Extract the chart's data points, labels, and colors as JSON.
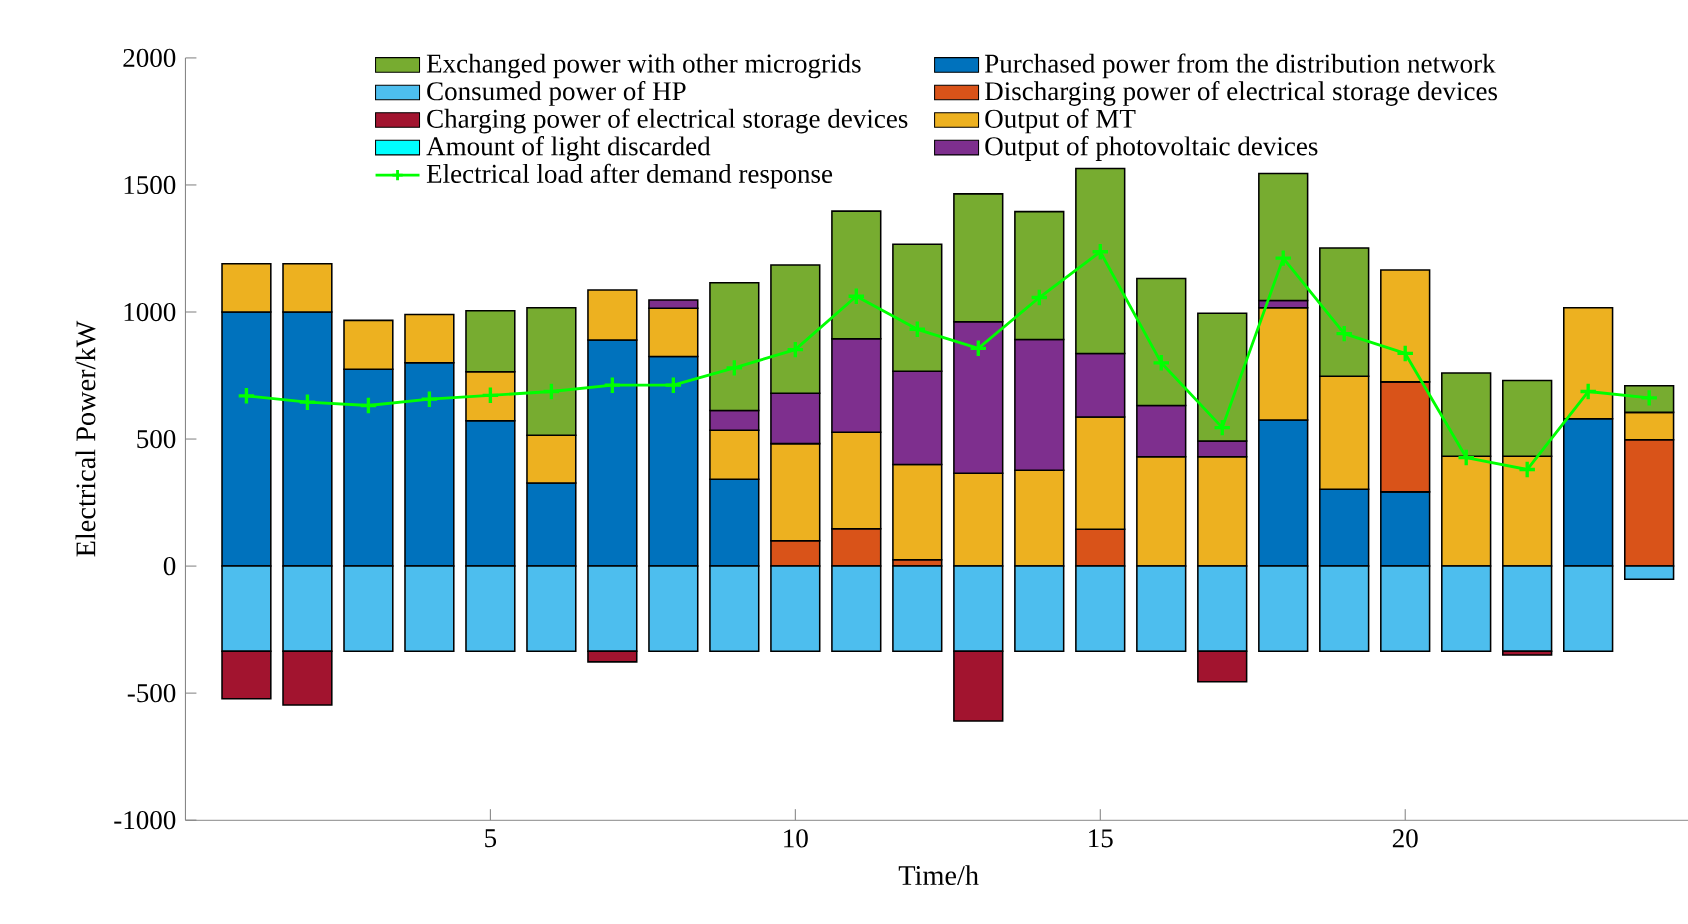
{
  "chart_data": {
    "type": "bar",
    "stacked": true,
    "xlabel": "Time/h",
    "ylabel": "Electrical Power/kW",
    "x": [
      1,
      2,
      3,
      4,
      5,
      6,
      7,
      8,
      9,
      10,
      11,
      12,
      13,
      14,
      15,
      16,
      17,
      18,
      19,
      20,
      21,
      22,
      23,
      24
    ],
    "xlim": [
      0,
      24.7
    ],
    "xticks": [
      5,
      10,
      15,
      20
    ],
    "ylim": [
      -1000,
      2000
    ],
    "yticks": [
      -1000,
      -500,
      0,
      500,
      1000,
      1500,
      2000
    ],
    "legend": "top",
    "grid": false,
    "series": [
      {
        "name": "Purchased power from the distribution network",
        "color": "#0072bd",
        "values": [
          1000,
          1000,
          775,
          800,
          572,
          327,
          890,
          825,
          342,
          0,
          0,
          0,
          0,
          0,
          0,
          0,
          0,
          575,
          302,
          292,
          0,
          0,
          580,
          0
        ]
      },
      {
        "name": "Discharging power of electrical storage devices",
        "color": "#d95319",
        "values": [
          0,
          0,
          0,
          0,
          0,
          0,
          0,
          0,
          0,
          100,
          147,
          25,
          0,
          0,
          145,
          0,
          0,
          0,
          0,
          433,
          0,
          0,
          0,
          497
        ]
      },
      {
        "name": "Output of MT",
        "color": "#edb120",
        "values": [
          190,
          190,
          192,
          190,
          193,
          188,
          197,
          190,
          193,
          382,
          380,
          375,
          365,
          377,
          442,
          430,
          430,
          442,
          445,
          440,
          432,
          432,
          437,
          108
        ]
      },
      {
        "name": "Output of photovoltaic devices",
        "color": "#7e2f8e",
        "values": [
          0,
          0,
          0,
          0,
          0,
          0,
          0,
          32,
          77,
          198,
          368,
          367,
          597,
          515,
          250,
          202,
          62,
          28,
          0,
          0,
          0,
          0,
          0,
          0
        ]
      },
      {
        "name": "Exchanged power with other microgrids",
        "color": "#77ac30",
        "values": [
          0,
          0,
          0,
          0,
          240,
          502,
          0,
          0,
          503,
          505,
          502,
          500,
          503,
          503,
          728,
          500,
          503,
          500,
          505,
          0,
          328,
          298,
          0,
          105
        ]
      },
      {
        "name": "Consumed power of HP",
        "color": "#4dbeee",
        "values": [
          -335,
          -335,
          -335,
          -335,
          -335,
          -335,
          -335,
          -335,
          -335,
          -335,
          -335,
          -335,
          -335,
          -335,
          -335,
          -335,
          -335,
          -335,
          -335,
          -335,
          -335,
          -335,
          -335,
          -52
        ]
      },
      {
        "name": "Charging power of electrical storage devices",
        "color": "#a2142f",
        "values": [
          -187,
          -212,
          0,
          0,
          0,
          0,
          -42,
          0,
          0,
          0,
          0,
          0,
          -275,
          0,
          0,
          0,
          -120,
          0,
          0,
          0,
          0,
          -15,
          0,
          0
        ]
      },
      {
        "name": "Amount of light discarded",
        "color": "#00ffff",
        "values": [
          0,
          0,
          0,
          0,
          0,
          0,
          0,
          0,
          0,
          0,
          0,
          0,
          0,
          0,
          0,
          0,
          0,
          0,
          0,
          0,
          0,
          0,
          0,
          0
        ]
      },
      {
        "name": "Electrical load after demand response",
        "type": "line",
        "marker": "cross",
        "color": "#00ff00",
        "values": [
          670,
          645,
          632,
          657,
          672,
          687,
          712,
          712,
          780,
          852,
          1062,
          932,
          857,
          1057,
          1237,
          800,
          545,
          1212,
          915,
          837,
          427,
          380,
          687,
          662
        ]
      }
    ]
  }
}
